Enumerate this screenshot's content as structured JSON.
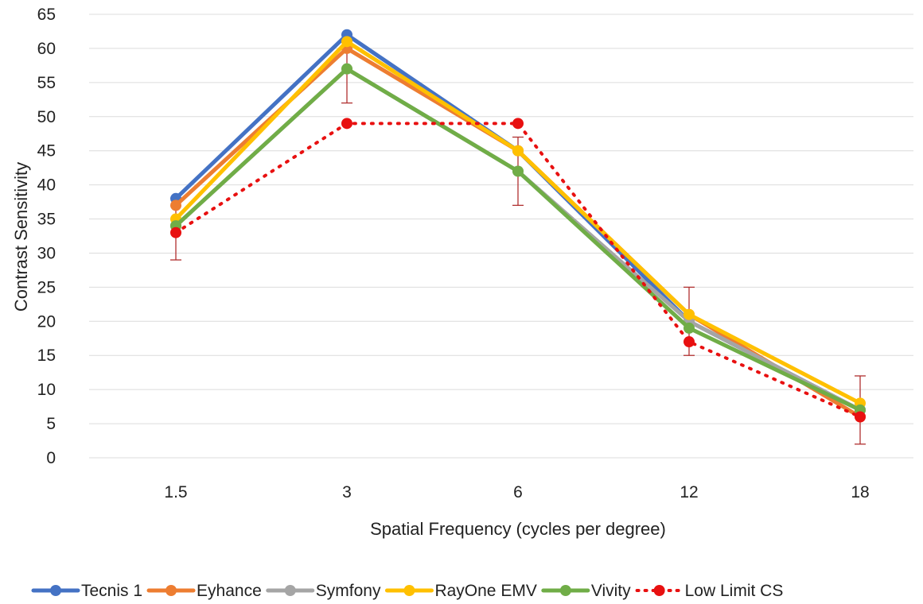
{
  "chart_data": {
    "type": "line",
    "title": "",
    "xlabel": "Spatial Frequency (cycles per degree)",
    "ylabel": "Contrast Sensitivity",
    "categories": [
      "1.5",
      "3",
      "6",
      "12",
      "18"
    ],
    "ylim": [
      0,
      65
    ],
    "yticks": [
      0,
      5,
      10,
      15,
      20,
      25,
      30,
      35,
      40,
      45,
      50,
      55,
      60,
      65
    ],
    "grid": true,
    "legend_position": "bottom",
    "series": [
      {
        "name": "Tecnis 1",
        "color": "#4472C4",
        "style": "solid",
        "values": [
          38,
          62,
          45,
          20,
          7
        ]
      },
      {
        "name": "Eyhance",
        "color": "#ED7D31",
        "style": "solid",
        "values": [
          37,
          60,
          45,
          21,
          6
        ]
      },
      {
        "name": "Symfony",
        "color": "#A5A5A5",
        "style": "solid",
        "values": [
          34,
          57,
          42,
          20,
          7
        ]
      },
      {
        "name": "RayOne EMV",
        "color": "#FFC000",
        "style": "solid",
        "values": [
          35,
          61,
          45,
          21,
          8
        ]
      },
      {
        "name": "Vivity",
        "color": "#70AD47",
        "style": "solid",
        "values": [
          34,
          57,
          42,
          19,
          7
        ]
      },
      {
        "name": "Low Limit CS",
        "color": "#E81010",
        "style": "dotted",
        "values": [
          33,
          49,
          49,
          17,
          6
        ]
      }
    ],
    "error_bars": [
      {
        "category": "1.5",
        "low": 29,
        "high": 38
      },
      {
        "category": "3",
        "low": 52,
        "high": 62
      },
      {
        "category": "6",
        "low": 37,
        "high": 47
      },
      {
        "category": "12",
        "low": 15,
        "high": 25
      },
      {
        "category": "18",
        "low": 2,
        "high": 12
      }
    ]
  }
}
